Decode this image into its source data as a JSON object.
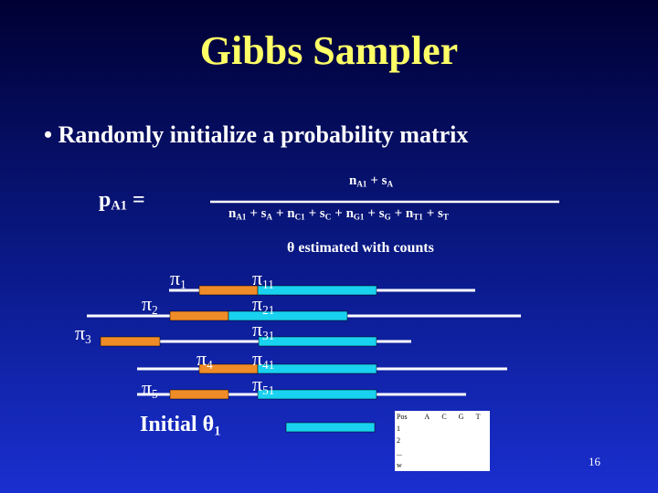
{
  "title": "Gibbs Sampler",
  "bullet": "Randomly initialize a probability matrix",
  "formula": {
    "lhs": {
      "text": "p",
      "sub": "A1",
      "op": "="
    },
    "numerator": [
      {
        "text": "n",
        "sub": "A1"
      },
      {
        "text": "+ s",
        "sub": "A"
      }
    ],
    "denominator": [
      {
        "text": "n",
        "sub": "A1"
      },
      {
        "text": "+ s",
        "sub": "A"
      },
      {
        "text": "+ n",
        "sub": "C1"
      },
      {
        "text": "+ s",
        "sub": "C"
      },
      {
        "text": "+ n",
        "sub": "G1"
      },
      {
        "text": "+ s",
        "sub": "G"
      },
      {
        "text": "+ n",
        "sub": "T1"
      },
      {
        "text": "+ s",
        "sub": "T"
      }
    ]
  },
  "note": "θ estimated with counts",
  "start_labels": [
    {
      "symbol": "π",
      "sub": "1"
    },
    {
      "symbol": "π",
      "sub": "2"
    },
    {
      "symbol": "π",
      "sub": "3"
    },
    {
      "symbol": "π",
      "sub": "4"
    },
    {
      "symbol": "π",
      "sub": "5"
    }
  ],
  "motif_labels": [
    {
      "symbol": "π",
      "sub": "11"
    },
    {
      "symbol": "π",
      "sub": "21"
    },
    {
      "symbol": "π",
      "sub": "31"
    },
    {
      "symbol": "π",
      "sub": "41"
    },
    {
      "symbol": "π",
      "sub": "51"
    }
  ],
  "initial": {
    "text": "Initial θ",
    "sub": "1"
  },
  "table": {
    "header": [
      "Pos",
      "A",
      "C",
      "G",
      "T"
    ],
    "rows": [
      "1",
      "2",
      "...",
      "w"
    ]
  },
  "page_number": "16"
}
